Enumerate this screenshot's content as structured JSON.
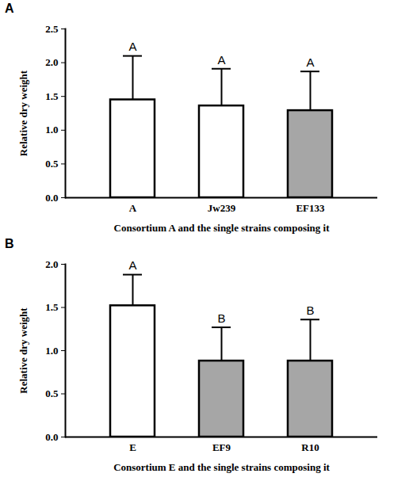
{
  "chart_data": [
    {
      "type": "bar",
      "title": "A",
      "categories": [
        "A",
        "Jw239",
        "EF133"
      ],
      "values": [
        1.45,
        1.36,
        1.29
      ],
      "errors": [
        0.65,
        0.55,
        0.58
      ],
      "annotations": [
        "A",
        "A",
        "A"
      ],
      "colors": [
        "#ffffff",
        "#ffffff",
        "#a6a6a6"
      ],
      "xlabel": "Consortium A and the single strains composing it",
      "ylabel": "Relative dry weight",
      "ylim": [
        0,
        2.5
      ],
      "yticks": [
        {
          "value": 0,
          "label": "0.0"
        },
        {
          "value": 0.5,
          "label": "0.5"
        },
        {
          "value": 1,
          "label": "1.0"
        },
        {
          "value": 1.5,
          "label": "1.5"
        },
        {
          "value": 2,
          "label": "2.0"
        },
        {
          "value": 2.5,
          "label": "2.5"
        }
      ],
      "grid": false
    },
    {
      "type": "bar",
      "title": "B",
      "categories": [
        "E",
        "EF9",
        "R10"
      ],
      "values": [
        1.52,
        0.88,
        0.88
      ],
      "errors": [
        0.36,
        0.39,
        0.48
      ],
      "annotations": [
        "A",
        "B",
        "B"
      ],
      "colors": [
        "#ffffff",
        "#a6a6a6",
        "#a6a6a6"
      ],
      "xlabel": "Consortium E and the single strains composing it",
      "ylabel": "Relative dry weight",
      "ylim": [
        0,
        2.0
      ],
      "yticks": [
        {
          "value": 0,
          "label": "0.0"
        },
        {
          "value": 0.5,
          "label": "0.5"
        },
        {
          "value": 1,
          "label": "1.0"
        },
        {
          "value": 1.5,
          "label": "1.5"
        },
        {
          "value": 2,
          "label": "2.0"
        }
      ],
      "grid": false
    }
  ]
}
